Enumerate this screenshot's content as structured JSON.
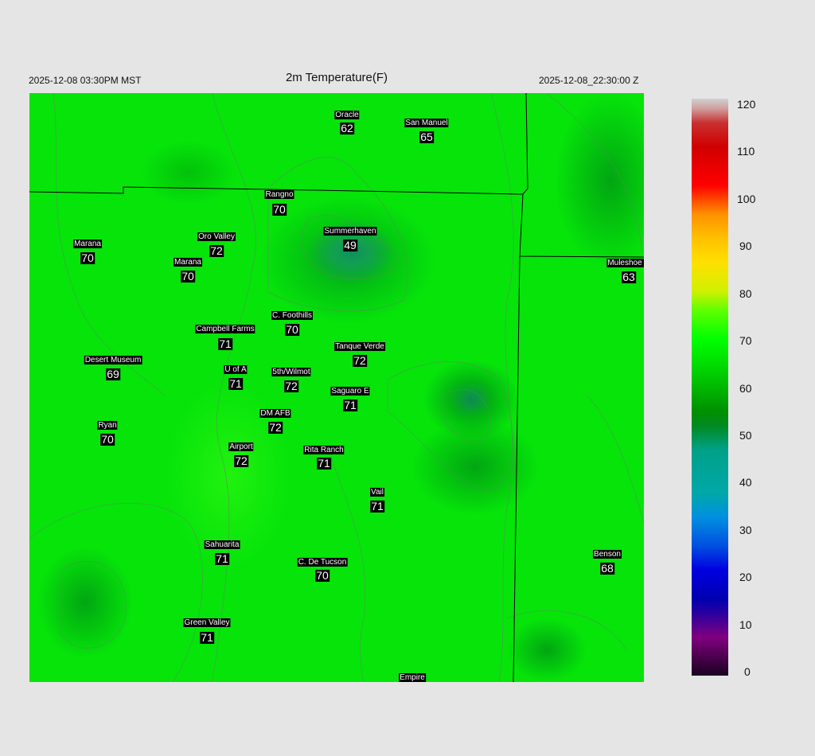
{
  "header": {
    "local_time": "2025-12-08 03:30PM MST",
    "title": "2m Temperature(F)",
    "utc_time": "2025-12-08_22:30:00 Z"
  },
  "stations": [
    {
      "name": "Oracle",
      "value": "62"
    },
    {
      "name": "San Manuel",
      "value": "65"
    },
    {
      "name": "Rangno",
      "value": "70"
    },
    {
      "name": "Summerhaven",
      "value": "49"
    },
    {
      "name": "Marana",
      "value": "70"
    },
    {
      "name": "Oro Valley",
      "value": "72"
    },
    {
      "name": "Marana",
      "value": "70"
    },
    {
      "name": "Muleshoe R",
      "value": "63"
    },
    {
      "name": "C. Foothills",
      "value": "70"
    },
    {
      "name": "Campbell Farms",
      "value": "71"
    },
    {
      "name": "Tanque Verde",
      "value": "72"
    },
    {
      "name": "Desert Museum",
      "value": "69"
    },
    {
      "name": "U of A",
      "value": "71"
    },
    {
      "name": "5th/Wilmot",
      "value": "72"
    },
    {
      "name": "Saguaro E",
      "value": "71"
    },
    {
      "name": "DM AFB",
      "value": "72"
    },
    {
      "name": "Ryan",
      "value": "70"
    },
    {
      "name": "Airport",
      "value": "72"
    },
    {
      "name": "Rita Ranch",
      "value": "71"
    },
    {
      "name": "Vail",
      "value": "71"
    },
    {
      "name": "Sahuarita",
      "value": "71"
    },
    {
      "name": "C. De Tucson",
      "value": "70"
    },
    {
      "name": "Benson",
      "value": "68"
    },
    {
      "name": "Green Valley",
      "value": "71"
    },
    {
      "name": "Empire",
      "value": null
    }
  ],
  "colorbar": {
    "unit": "F",
    "range": [
      0,
      120
    ],
    "ticks": [
      "120",
      "110",
      "100",
      "90",
      "80",
      "70",
      "60",
      "50",
      "40",
      "30",
      "20",
      "10",
      "0"
    ],
    "stops": [
      {
        "v": 0,
        "c": "#1a0020"
      },
      {
        "v": 5,
        "c": "#5a005a"
      },
      {
        "v": 8,
        "c": "#800080"
      },
      {
        "v": 13,
        "c": "#2a00a0"
      },
      {
        "v": 16,
        "c": "#0000b0"
      },
      {
        "v": 22,
        "c": "#0000e0"
      },
      {
        "v": 27,
        "c": "#0050e0"
      },
      {
        "v": 33,
        "c": "#0090e0"
      },
      {
        "v": 38,
        "c": "#00a8a8"
      },
      {
        "v": 47,
        "c": "#00a088"
      },
      {
        "v": 52,
        "c": "#008a20"
      },
      {
        "v": 55,
        "c": "#009000"
      },
      {
        "v": 63,
        "c": "#00d000"
      },
      {
        "v": 70,
        "c": "#00ff00"
      },
      {
        "v": 76,
        "c": "#60ff00"
      },
      {
        "v": 80,
        "c": "#d0f000"
      },
      {
        "v": 86,
        "c": "#ffe000"
      },
      {
        "v": 91,
        "c": "#ffc000"
      },
      {
        "v": 96,
        "c": "#ff9000"
      },
      {
        "v": 100,
        "c": "#ff3000"
      },
      {
        "v": 102,
        "c": "#ff0000"
      },
      {
        "v": 110,
        "c": "#d00000"
      },
      {
        "v": 115,
        "c": "#c83030"
      },
      {
        "v": 118,
        "c": "#d0a0a0"
      },
      {
        "v": 120,
        "c": "#d0d0d0"
      }
    ]
  },
  "contours": [
    "3000",
    "4000",
    "5000"
  ]
}
